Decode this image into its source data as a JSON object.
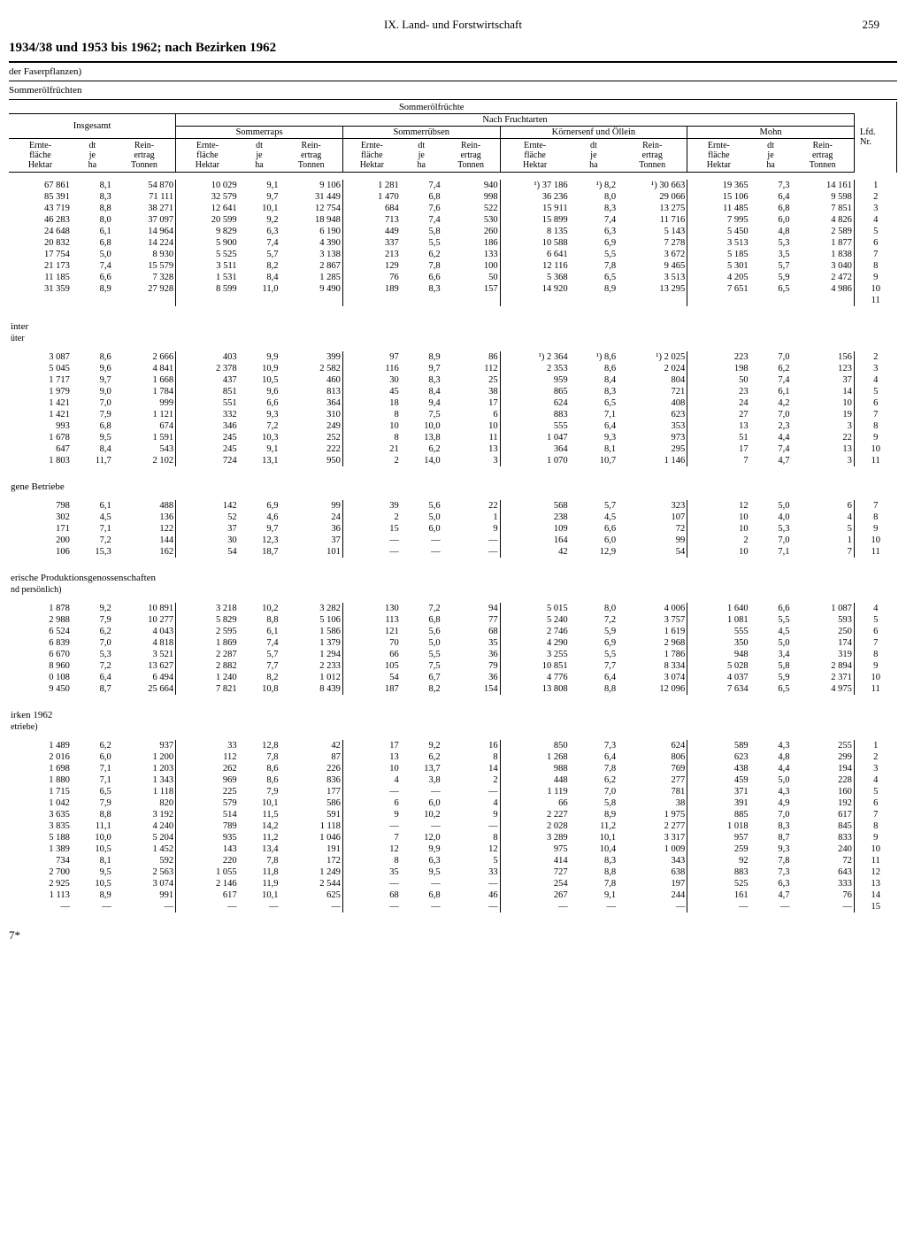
{
  "header": {
    "chapter": "IX. Land- und Forstwirtschaft",
    "page_number": "259",
    "title": "1934/38 und 1953 bis 1962; nach Bezirken 1962",
    "note1": "der Faserpflanzen)",
    "note2": "Sommerölfrüchten",
    "group_title": "Sommerölfrüchte",
    "sub_group": "Nach Fruchtarten",
    "lfd_label": "Lfd.\nNr.",
    "footer": "7*"
  },
  "col_groups": {
    "insgesamt": "Insgesamt",
    "sommerraps": "Sommerraps",
    "sommerruebsen": "Sommerrübsen",
    "koernersenf": "Körnersenf und Öllein",
    "mohn": "Mohn"
  },
  "col_headers": {
    "ernte": "Ernte-\nfläche\nHektar",
    "dt": "dt\nje\nha",
    "rein": "Rein-\nertrag\nTonnen"
  },
  "sections": [
    {
      "label": "",
      "sub": "",
      "rows": [
        [
          "67 861",
          "8,1",
          "54 870",
          "10 029",
          "9,1",
          "9 106",
          "1 281",
          "7,4",
          "940",
          "¹) 37 186",
          "¹) 8,2",
          "¹) 30 663",
          "19 365",
          "7,3",
          "14 161",
          "1"
        ],
        [
          "85 391",
          "8,3",
          "71 111",
          "32 579",
          "9,7",
          "31 449",
          "1 470",
          "6,8",
          "998",
          "36 236",
          "8,0",
          "29 066",
          "15 106",
          "6,4",
          "9 598",
          "2"
        ],
        [
          "43 719",
          "8,8",
          "38 271",
          "12 641",
          "10,1",
          "12 754",
          "684",
          "7,6",
          "522",
          "15 911",
          "8,3",
          "13 275",
          "11 485",
          "6,8",
          "7 851",
          "3"
        ],
        [
          "46 283",
          "8,0",
          "37 097",
          "20 599",
          "9,2",
          "18 948",
          "713",
          "7,4",
          "530",
          "15 899",
          "7,4",
          "11 716",
          "7 995",
          "6,0",
          "4 826",
          "4"
        ],
        [
          "24 648",
          "6,1",
          "14 964",
          "9 829",
          "6,3",
          "6 190",
          "449",
          "5,8",
          "260",
          "8 135",
          "6,3",
          "5 143",
          "5 450",
          "4,8",
          "2 589",
          "5"
        ],
        [
          "20 832",
          "6,8",
          "14 224",
          "5 900",
          "7,4",
          "4 390",
          "337",
          "5,5",
          "186",
          "10 588",
          "6,9",
          "7 278",
          "3 513",
          "5,3",
          "1 877",
          "6"
        ],
        [
          "17 754",
          "5,0",
          "8 930",
          "5 525",
          "5,7",
          "3 138",
          "213",
          "6,2",
          "133",
          "6 641",
          "5,5",
          "3 672",
          "5 185",
          "3,5",
          "1 838",
          "7"
        ],
        [
          "21 173",
          "7,4",
          "15 579",
          "3 511",
          "8,2",
          "2 867",
          "129",
          "7,8",
          "100",
          "12 116",
          "7,8",
          "9 465",
          "5 301",
          "5,7",
          "3 040",
          "8"
        ],
        [
          "11 185",
          "6,6",
          "7 328",
          "1 531",
          "8,4",
          "1 285",
          "76",
          "6,6",
          "50",
          "5 368",
          "6,5",
          "3 513",
          "4 205",
          "5,9",
          "2 472",
          "9"
        ],
        [
          "31 359",
          "8,9",
          "27 928",
          "8 599",
          "11,0",
          "9 490",
          "189",
          "8,3",
          "157",
          "14 920",
          "8,9",
          "13 295",
          "7 651",
          "6,5",
          "4 986",
          "10"
        ],
        [
          "",
          "",
          "",
          "",
          "",
          "",
          "",
          "",
          "",
          "",
          "",
          "",
          "",
          "",
          "",
          "11"
        ]
      ]
    },
    {
      "label": "inter",
      "sub": "üter",
      "rows": [
        [
          "3 087",
          "8,6",
          "2 666",
          "403",
          "9,9",
          "399",
          "97",
          "8,9",
          "86",
          "¹) 2 364",
          "¹) 8,6",
          "¹) 2 025",
          "223",
          "7,0",
          "156",
          "2"
        ],
        [
          "5 045",
          "9,6",
          "4 841",
          "2 378",
          "10,9",
          "2 582",
          "116",
          "9,7",
          "112",
          "2 353",
          "8,6",
          "2 024",
          "198",
          "6,2",
          "123",
          "3"
        ],
        [
          "1 717",
          "9,7",
          "1 668",
          "437",
          "10,5",
          "460",
          "30",
          "8,3",
          "25",
          "959",
          "8,4",
          "804",
          "50",
          "7,4",
          "37",
          "4"
        ],
        [
          "1 979",
          "9,0",
          "1 784",
          "851",
          "9,6",
          "813",
          "45",
          "8,4",
          "38",
          "865",
          "8,3",
          "721",
          "23",
          "6,1",
          "14",
          "5"
        ],
        [
          "1 421",
          "7,0",
          "999",
          "551",
          "6,6",
          "364",
          "18",
          "9,4",
          "17",
          "624",
          "6,5",
          "408",
          "24",
          "4,2",
          "10",
          "6"
        ],
        [
          "1 421",
          "7,9",
          "1 121",
          "332",
          "9,3",
          "310",
          "8",
          "7,5",
          "6",
          "883",
          "7,1",
          "623",
          "27",
          "7,0",
          "19",
          "7"
        ],
        [
          "993",
          "6,8",
          "674",
          "346",
          "7,2",
          "249",
          "10",
          "10,0",
          "10",
          "555",
          "6,4",
          "353",
          "13",
          "2,3",
          "3",
          "8"
        ],
        [
          "1 678",
          "9,5",
          "1 591",
          "245",
          "10,3",
          "252",
          "8",
          "13,8",
          "11",
          "1 047",
          "9,3",
          "973",
          "51",
          "4,4",
          "22",
          "9"
        ],
        [
          "647",
          "8,4",
          "543",
          "245",
          "9,1",
          "222",
          "21",
          "6,2",
          "13",
          "364",
          "8,1",
          "295",
          "17",
          "7,4",
          "13",
          "10"
        ],
        [
          "1 803",
          "11,7",
          "2 102",
          "724",
          "13,1",
          "950",
          "2",
          "14,0",
          "3",
          "1 070",
          "10,7",
          "1 146",
          "7",
          "4,7",
          "3",
          "11"
        ]
      ]
    },
    {
      "label": "gene Betriebe",
      "sub": "",
      "rows": [
        [
          "798",
          "6,1",
          "488",
          "142",
          "6,9",
          "99",
          "39",
          "5,6",
          "22",
          "568",
          "5,7",
          "323",
          "12",
          "5,0",
          "6",
          "7"
        ],
        [
          "302",
          "4,5",
          "136",
          "52",
          "4,6",
          "24",
          "2",
          "5,0",
          "1",
          "238",
          "4,5",
          "107",
          "10",
          "4,0",
          "4",
          "8"
        ],
        [
          "171",
          "7,1",
          "122",
          "37",
          "9,7",
          "36",
          "15",
          "6,0",
          "9",
          "109",
          "6,6",
          "72",
          "10",
          "5,3",
          "5",
          "9"
        ],
        [
          "200",
          "7,2",
          "144",
          "30",
          "12,3",
          "37",
          "—",
          "—",
          "—",
          "164",
          "6,0",
          "99",
          "2",
          "7,0",
          "1",
          "10"
        ],
        [
          "106",
          "15,3",
          "162",
          "54",
          "18,7",
          "101",
          "—",
          "—",
          "—",
          "42",
          "12,9",
          "54",
          "10",
          "7,1",
          "7",
          "11"
        ]
      ]
    },
    {
      "label": "erische Produktionsgenossenschaften",
      "sub": "nd persönlich)",
      "rows": [
        [
          "1 878",
          "9,2",
          "10 891",
          "3 218",
          "10,2",
          "3 282",
          "130",
          "7,2",
          "94",
          "5 015",
          "8,0",
          "4 006",
          "1 640",
          "6,6",
          "1 087",
          "4"
        ],
        [
          "2 988",
          "7,9",
          "10 277",
          "5 829",
          "8,8",
          "5 106",
          "113",
          "6,8",
          "77",
          "5 240",
          "7,2",
          "3 757",
          "1 081",
          "5,5",
          "593",
          "5"
        ],
        [
          "6 524",
          "6,2",
          "4 043",
          "2 595",
          "6,1",
          "1 586",
          "121",
          "5,6",
          "68",
          "2 746",
          "5,9",
          "1 619",
          "555",
          "4,5",
          "250",
          "6"
        ],
        [
          "6 839",
          "7,0",
          "4 818",
          "1 869",
          "7,4",
          "1 379",
          "70",
          "5,0",
          "35",
          "4 290",
          "6,9",
          "2 968",
          "350",
          "5,0",
          "174",
          "7"
        ],
        [
          "6 670",
          "5,3",
          "3 521",
          "2 287",
          "5,7",
          "1 294",
          "66",
          "5,5",
          "36",
          "3 255",
          "5,5",
          "1 786",
          "948",
          "3,4",
          "319",
          "8"
        ],
        [
          "8 960",
          "7,2",
          "13 627",
          "2 882",
          "7,7",
          "2 233",
          "105",
          "7,5",
          "79",
          "10 851",
          "7,7",
          "8 334",
          "5 028",
          "5,8",
          "2 894",
          "9"
        ],
        [
          "0 108",
          "6,4",
          "6 494",
          "1 240",
          "8,2",
          "1 012",
          "54",
          "6,7",
          "36",
          "4 776",
          "6,4",
          "3 074",
          "4 037",
          "5,9",
          "2 371",
          "10"
        ],
        [
          "9 450",
          "8,7",
          "25 664",
          "7 821",
          "10,8",
          "8 439",
          "187",
          "8,2",
          "154",
          "13 808",
          "8,8",
          "12 096",
          "7 634",
          "6,5",
          "4 975",
          "11"
        ]
      ]
    },
    {
      "label": "irken 1962",
      "sub": "etriebe)",
      "rows": [
        [
          "1 489",
          "6,2",
          "937",
          "33",
          "12,8",
          "42",
          "17",
          "9,2",
          "16",
          "850",
          "7,3",
          "624",
          "589",
          "4,3",
          "255",
          "1"
        ],
        [
          "2 016",
          "6,0",
          "1 200",
          "112",
          "7,8",
          "87",
          "13",
          "6,2",
          "8",
          "1 268",
          "6,4",
          "806",
          "623",
          "4,8",
          "299",
          "2"
        ],
        [
          "1 698",
          "7,1",
          "1 203",
          "262",
          "8,6",
          "226",
          "10",
          "13,7",
          "14",
          "988",
          "7,8",
          "769",
          "438",
          "4,4",
          "194",
          "3"
        ],
        [
          "1 880",
          "7,1",
          "1 343",
          "969",
          "8,6",
          "836",
          "4",
          "3,8",
          "2",
          "448",
          "6,2",
          "277",
          "459",
          "5,0",
          "228",
          "4"
        ],
        [
          "1 715",
          "6,5",
          "1 118",
          "225",
          "7,9",
          "177",
          "—",
          "—",
          "—",
          "1 119",
          "7,0",
          "781",
          "371",
          "4,3",
          "160",
          "5"
        ],
        [
          "1 042",
          "7,9",
          "820",
          "579",
          "10,1",
          "586",
          "6",
          "6,0",
          "4",
          "66",
          "5,8",
          "38",
          "391",
          "4,9",
          "192",
          "6"
        ],
        [
          "3 635",
          "8,8",
          "3 192",
          "514",
          "11,5",
          "591",
          "9",
          "10,2",
          "9",
          "2 227",
          "8,9",
          "1 975",
          "885",
          "7,0",
          "617",
          "7"
        ],
        [
          "3 835",
          "11,1",
          "4 240",
          "789",
          "14,2",
          "1 118",
          "—",
          "—",
          "—",
          "2 028",
          "11,2",
          "2 277",
          "1 018",
          "8,3",
          "845",
          "8"
        ],
        [
          "5 188",
          "10,0",
          "5 204",
          "935",
          "11,2",
          "1 046",
          "7",
          "12,0",
          "8",
          "3 289",
          "10,1",
          "3 317",
          "957",
          "8,7",
          "833",
          "9"
        ],
        [
          "1 389",
          "10,5",
          "1 452",
          "143",
          "13,4",
          "191",
          "12",
          "9,9",
          "12",
          "975",
          "10,4",
          "1 009",
          "259",
          "9,3",
          "240",
          "10"
        ],
        [
          "734",
          "8,1",
          "592",
          "220",
          "7,8",
          "172",
          "8",
          "6,3",
          "5",
          "414",
          "8,3",
          "343",
          "92",
          "7,8",
          "72",
          "11"
        ],
        [
          "2 700",
          "9,5",
          "2 563",
          "1 055",
          "11,8",
          "1 249",
          "35",
          "9,5",
          "33",
          "727",
          "8,8",
          "638",
          "883",
          "7,3",
          "643",
          "12"
        ],
        [
          "2 925",
          "10,5",
          "3 074",
          "2 146",
          "11,9",
          "2 544",
          "—",
          "—",
          "—",
          "254",
          "7,8",
          "197",
          "525",
          "6,3",
          "333",
          "13"
        ],
        [
          "1 113",
          "8,9",
          "991",
          "617",
          "10,1",
          "625",
          "68",
          "6,8",
          "46",
          "267",
          "9,1",
          "244",
          "161",
          "4,7",
          "76",
          "14"
        ],
        [
          "—",
          "—",
          "—",
          "—",
          "—",
          "—",
          "—",
          "—",
          "—",
          "—",
          "—",
          "—",
          "—",
          "—",
          "—",
          "15"
        ]
      ]
    }
  ],
  "style": {
    "background_color": "#ffffff",
    "text_color": "#000000",
    "font_family": "Times New Roman",
    "col_widths_pct": [
      6.5,
      4.3,
      6.5,
      6.5,
      4.3,
      6.5,
      6,
      4.3,
      6,
      7.2,
      5,
      7.2,
      6.5,
      4.3,
      6.5,
      4.4
    ]
  }
}
